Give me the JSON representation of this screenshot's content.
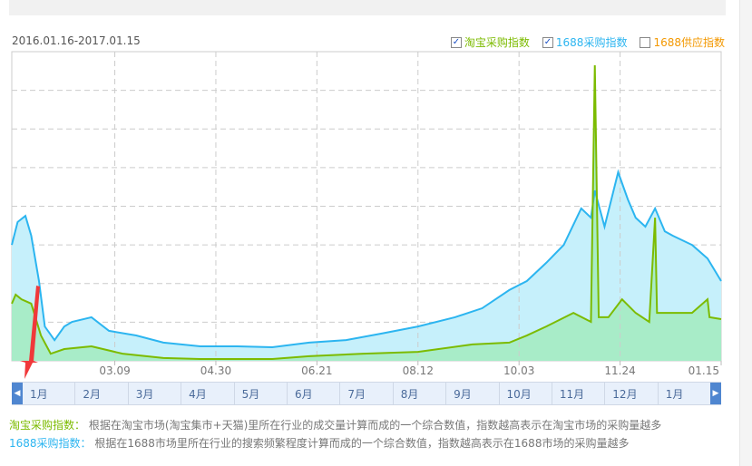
{
  "range_label": "2016.01.16-2017.01.15",
  "legend": [
    {
      "label": "淘宝采购指数",
      "checked": true,
      "color": "#7cbb00"
    },
    {
      "label": "1688采购指数",
      "checked": true,
      "color": "#2cb5f0"
    },
    {
      "label": "1688供应指数",
      "checked": false,
      "color": "#f39800"
    }
  ],
  "chart_data": {
    "type": "area",
    "x_range": [
      "2016-01-16",
      "2017-01-15"
    ],
    "y_range": [
      0,
      100
    ],
    "grid": true,
    "legend_placement": "top-right",
    "x_ticks": [
      "03.09",
      "04.30",
      "06.21",
      "08.12",
      "10.03",
      "11.24",
      "01.15"
    ],
    "x_tick_dates": [
      "2016-03-09",
      "2016-04-30",
      "2016-06-21",
      "2016-08-12",
      "2016-10-03",
      "2016-11-24",
      "2017-01-15"
    ],
    "series": [
      {
        "name": "1688采购指数",
        "color": "#2cb5f0",
        "fill": "#c6f0fb",
        "points": [
          [
            "2016-01-16",
            37.5
          ],
          [
            "2016-01-19",
            44.9
          ],
          [
            "2016-01-23",
            46.9
          ],
          [
            "2016-01-26",
            40.5
          ],
          [
            "2016-01-30",
            25.8
          ],
          [
            "2016-02-02",
            11.1
          ],
          [
            "2016-02-07",
            6.7
          ],
          [
            "2016-02-12",
            11.1
          ],
          [
            "2016-02-16",
            12.6
          ],
          [
            "2016-02-26",
            14.1
          ],
          [
            "2016-03-06",
            9.7
          ],
          [
            "2016-03-20",
            8.2
          ],
          [
            "2016-04-03",
            5.9
          ],
          [
            "2016-04-22",
            4.7
          ],
          [
            "2016-05-11",
            4.7
          ],
          [
            "2016-05-29",
            4.4
          ],
          [
            "2016-06-17",
            5.9
          ],
          [
            "2016-07-06",
            6.7
          ],
          [
            "2016-07-24",
            8.8
          ],
          [
            "2016-08-12",
            11.1
          ],
          [
            "2016-08-31",
            14.1
          ],
          [
            "2016-09-14",
            17.0
          ],
          [
            "2016-09-28",
            22.9
          ],
          [
            "2016-10-07",
            25.8
          ],
          [
            "2016-10-17",
            31.7
          ],
          [
            "2016-10-26",
            37.5
          ],
          [
            "2016-11-04",
            49.3
          ],
          [
            "2016-11-09",
            46.3
          ],
          [
            "2016-11-11",
            55.1
          ],
          [
            "2016-11-16",
            43.4
          ],
          [
            "2016-11-23",
            61.0
          ],
          [
            "2016-11-28",
            52.2
          ],
          [
            "2016-12-02",
            46.3
          ],
          [
            "2016-12-07",
            43.4
          ],
          [
            "2016-12-12",
            49.3
          ],
          [
            "2016-12-17",
            41.9
          ],
          [
            "2016-12-21",
            40.5
          ],
          [
            "2016-12-31",
            37.5
          ],
          [
            "2017-01-08",
            33.1
          ],
          [
            "2017-01-15",
            25.8
          ]
        ]
      },
      {
        "name": "淘宝采购指数",
        "color": "#7cbb00",
        "fill": "#a8ecc8",
        "points": [
          [
            "2016-01-16",
            18.5
          ],
          [
            "2016-01-18",
            21.4
          ],
          [
            "2016-01-21",
            19.9
          ],
          [
            "2016-01-26",
            18.5
          ],
          [
            "2016-01-31",
            8.2
          ],
          [
            "2016-02-05",
            2.3
          ],
          [
            "2016-02-12",
            3.8
          ],
          [
            "2016-02-26",
            4.7
          ],
          [
            "2016-03-13",
            2.3
          ],
          [
            "2016-04-03",
            0.9
          ],
          [
            "2016-04-22",
            0.6
          ],
          [
            "2016-05-29",
            0.6
          ],
          [
            "2016-06-17",
            1.5
          ],
          [
            "2016-07-15",
            2.3
          ],
          [
            "2016-08-12",
            2.9
          ],
          [
            "2016-09-09",
            5.3
          ],
          [
            "2016-09-28",
            5.9
          ],
          [
            "2016-10-07",
            8.2
          ],
          [
            "2016-10-17",
            11.1
          ],
          [
            "2016-10-31",
            15.5
          ],
          [
            "2016-11-09",
            12.6
          ],
          [
            "2016-11-11",
            95.6
          ],
          [
            "2016-11-13",
            14.1
          ],
          [
            "2016-11-18",
            14.1
          ],
          [
            "2016-11-25",
            19.9
          ],
          [
            "2016-12-02",
            15.5
          ],
          [
            "2016-12-09",
            12.6
          ],
          [
            "2016-12-12",
            46.3
          ],
          [
            "2016-12-13",
            15.5
          ],
          [
            "2016-12-21",
            15.5
          ],
          [
            "2016-12-31",
            15.5
          ],
          [
            "2017-01-08",
            19.9
          ],
          [
            "2017-01-09",
            14.1
          ],
          [
            "2017-01-15",
            13.5
          ]
        ]
      }
    ]
  },
  "months": [
    "1月",
    "2月",
    "3月",
    "4月",
    "5月",
    "6月",
    "7月",
    "8月",
    "9月",
    "10月",
    "11月",
    "12月",
    "1月"
  ],
  "nav_prev": "◀",
  "nav_next": "▶",
  "descriptions": [
    {
      "term": "淘宝采购指数：",
      "text": "根据在淘宝市场(淘宝集市+天猫)里所在行业的成交量计算而成的一个综合数值，指数越高表示在淘宝市场的采购量越多",
      "color": "#7cbb00"
    },
    {
      "term": "1688采购指数：",
      "text": "根据在1688市场里所在行业的搜索频繁程度计算而成的一个综合数值，指数越高表示在1688市场的采购量越多",
      "color": "#2cb5f0"
    }
  ]
}
